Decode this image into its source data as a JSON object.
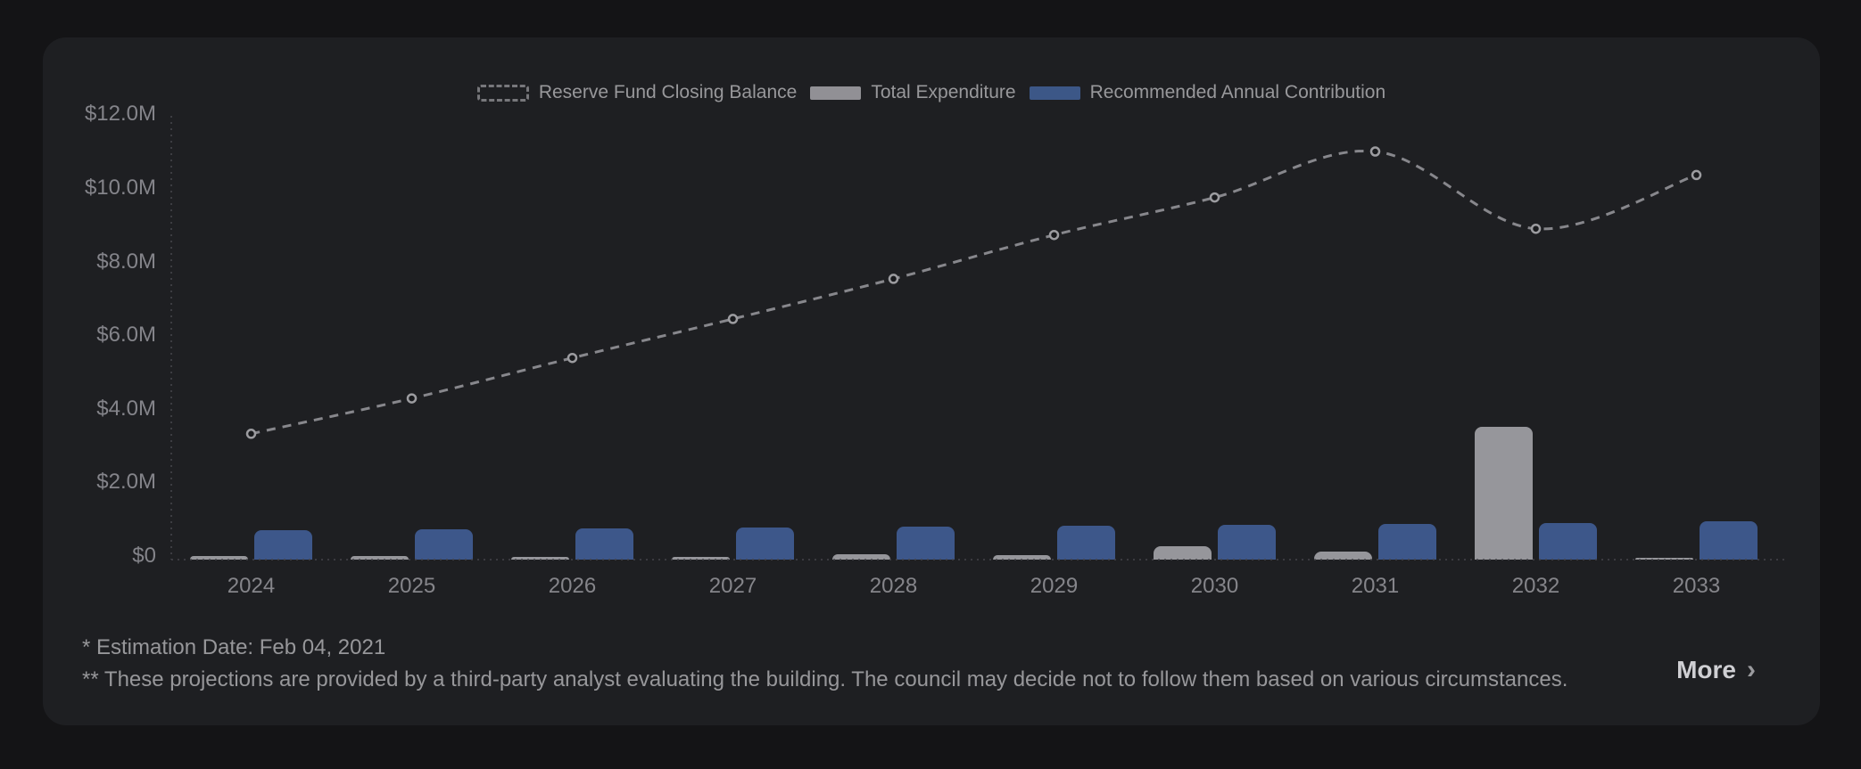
{
  "card": {
    "footnotes": [
      "* Estimation Date: Feb 04, 2021",
      "** These projections are provided by a third-party analyst evaluating the building. The council may decide not to follow them based on various circumstances."
    ],
    "more_label": "More",
    "more_chevron": "›"
  },
  "legend": [
    {
      "label": "Reserve Fund Closing Balance",
      "icon": "dashed-line-swatch",
      "color": "#77777b"
    },
    {
      "label": "Total Expenditure",
      "icon": "bar-swatch",
      "color": "#919095"
    },
    {
      "label": "Recommended Annual Contribution",
      "icon": "bar-swatch",
      "color": "#3c5787"
    }
  ],
  "colors": {
    "page_background": "#141416",
    "card_background": "#1e1f22",
    "axis_text": "#84848a",
    "line_series": "#87878c",
    "expenditure_bar": "#96969b",
    "contribution_bar": "#3d578a"
  },
  "chart_data": {
    "type": "combo",
    "title": "",
    "xlabel": "",
    "ylabel": "",
    "categories": [
      "2024",
      "2025",
      "2026",
      "2027",
      "2028",
      "2029",
      "2030",
      "2031",
      "2032",
      "2033"
    ],
    "series": [
      {
        "name": "Reserve Fund Closing Balance",
        "type": "line",
        "style": "dashed-with-markers",
        "unit": "$M",
        "color": "#87878c",
        "values": [
          3.42,
          4.38,
          5.48,
          6.54,
          7.63,
          8.82,
          9.84,
          11.09,
          8.99,
          10.45
        ]
      },
      {
        "name": "Total Expenditure",
        "type": "bar",
        "unit": "$M",
        "color": "#96969b",
        "values": [
          0.1,
          0.1,
          0.07,
          0.08,
          0.14,
          0.12,
          0.36,
          0.21,
          3.61,
          0.05
        ]
      },
      {
        "name": "Recommended Annual Contribution",
        "type": "bar",
        "unit": "$M",
        "color": "#3d578a",
        "values": [
          0.8,
          0.82,
          0.84,
          0.86,
          0.89,
          0.92,
          0.94,
          0.97,
          1.0,
          1.03
        ]
      }
    ],
    "yticks": {
      "values": [
        0,
        2,
        4,
        6,
        8,
        10,
        12
      ],
      "labels": [
        "$0",
        "$2.0M",
        "$4.0M",
        "$6.0M",
        "$8.0M",
        "$10.0M",
        "$12.0M"
      ]
    },
    "ylim": [
      0,
      12.4
    ],
    "grid": false,
    "legend_position": "top-center"
  }
}
